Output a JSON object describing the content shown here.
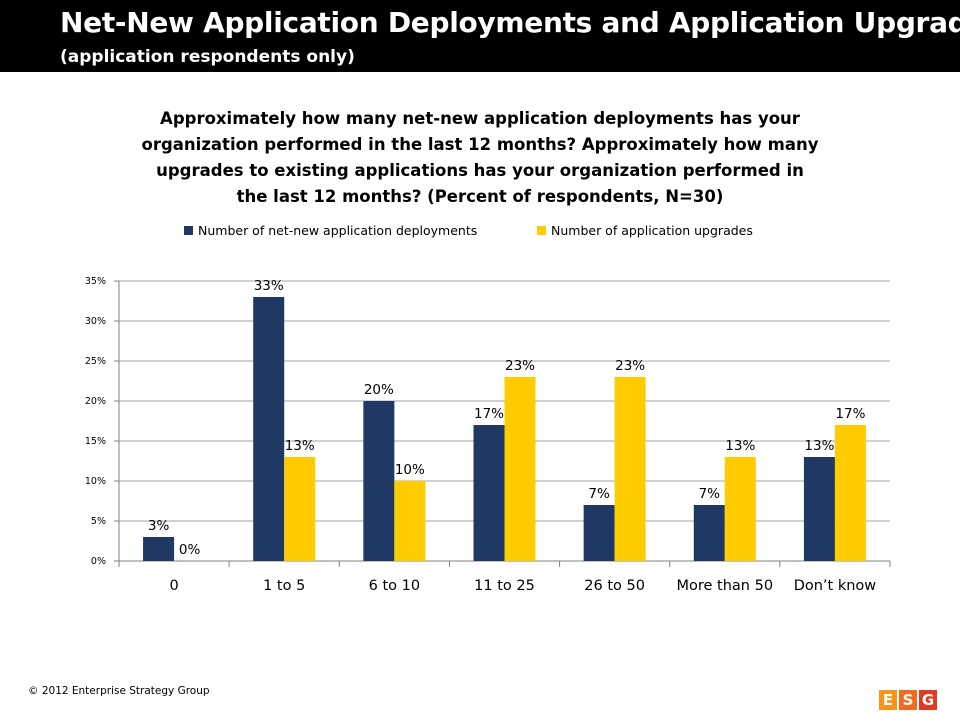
{
  "header": {
    "title": "Net-New Application Deployments and Application Upgrades",
    "subtitle": "(application respondents only)"
  },
  "footer": {
    "copyright": "© 2012 Enterprise Strategy Group"
  },
  "logo": {
    "letters": [
      "E",
      "S",
      "G"
    ]
  },
  "colors": {
    "series1": "#1f3864",
    "series2": "#ffcc00",
    "header_bg": "#000000",
    "grid": "#a6a6a6"
  },
  "chart_data": {
    "type": "bar",
    "title": "Approximately how many net-new application deployments has your organization performed in the last 12 months? Approximately how many upgrades to existing applications has your organization performed in the last 12 months? (Percent of respondents, N=30)",
    "categories": [
      "0",
      "1 to 5",
      "6 to 10",
      "11 to 25",
      "26 to 50",
      "More than 50",
      "Don’t know"
    ],
    "series": [
      {
        "name": "Number of net-new application deployments",
        "values": [
          3,
          33,
          20,
          17,
          7,
          7,
          13
        ],
        "labels": [
          "3%",
          "33%",
          "20%",
          "17%",
          "7%",
          "7%",
          "13%"
        ]
      },
      {
        "name": "Number of application upgrades",
        "values": [
          0,
          13,
          10,
          23,
          23,
          13,
          17
        ],
        "labels": [
          "0%",
          "13%",
          "10%",
          "23%",
          "23%",
          "13%",
          "17%"
        ]
      }
    ],
    "yticks": [
      "0%",
      "5%",
      "10%",
      "15%",
      "20%",
      "25%",
      "30%",
      "35%"
    ],
    "ylim": [
      0,
      35
    ],
    "xlabel": "",
    "ylabel": "",
    "grid": true,
    "legend_position": "top"
  }
}
